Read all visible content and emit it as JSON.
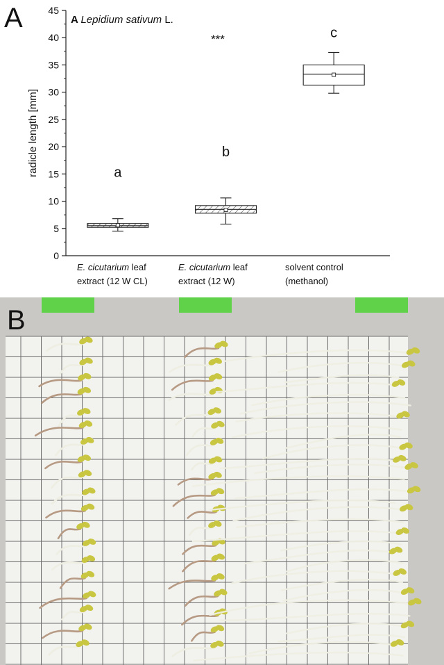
{
  "panel_a_letter": "A",
  "panel_b_letter": "B",
  "chart_data": {
    "type": "box",
    "panel_tag": "A",
    "title_italic": "Lepidium sativum",
    "title_suffix": " L.",
    "ylabel": "radicle length [mm]",
    "ylim": [
      0,
      45
    ],
    "yticks": [
      0,
      5,
      10,
      15,
      20,
      25,
      30,
      35,
      40,
      45
    ],
    "significance": "***",
    "categories": [
      {
        "line1_italic": "E. cicutarium",
        "line1_rest": " leaf",
        "line2": "extract (12 W CL)",
        "letter": "a",
        "hatched": true,
        "whisker_low": 4.5,
        "q1": 5.2,
        "median": 5.5,
        "mean": 5.6,
        "q3": 5.9,
        "whisker_high": 6.8
      },
      {
        "line1_italic": "E. cicutarium",
        "line1_rest": " leaf",
        "line2": "extract (12 W)",
        "letter": "b",
        "hatched": true,
        "whisker_low": 5.8,
        "q1": 7.8,
        "median": 8.5,
        "mean": 8.4,
        "q3": 9.2,
        "whisker_high": 10.6
      },
      {
        "line1_italic": "",
        "line1_rest": "solvent control",
        "line2": "(methanol)",
        "letter": "c",
        "hatched": false,
        "whisker_low": 29.8,
        "q1": 31.3,
        "median": 33.3,
        "mean": 33.2,
        "q3": 35.0,
        "whisker_high": 37.3
      }
    ]
  },
  "colors": {
    "axis": "#222222",
    "photo_background": "#c9c8c4",
    "grid_paper": "#f2f2ef",
    "grid_line": "#6e6e6e",
    "label_tape": "#5fd24a",
    "seedling_leaf": "#c9c642",
    "seedling_root": "#eeeee2",
    "seedling_root_brown": "#b79a83"
  }
}
